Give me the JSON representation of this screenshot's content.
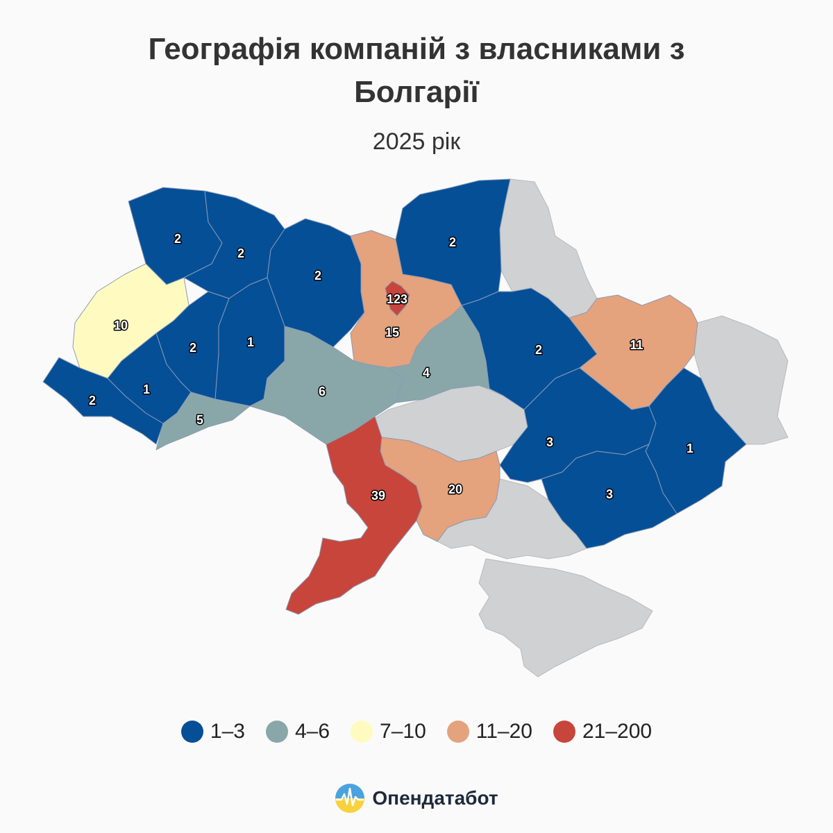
{
  "title_line1": "Географія компаній з власниками з",
  "title_line2": "Болгарії",
  "subtitle": "2025 рік",
  "colors": {
    "c1": "#054f97",
    "c2": "#89a7a8",
    "c3": "#fffbc0",
    "c4": "#e4a27d",
    "c5": "#c8453c",
    "no_data": "#d0d1d3"
  },
  "legend": [
    {
      "label": "1–3",
      "color": "#054f97"
    },
    {
      "label": "4–6",
      "color": "#89a7a8"
    },
    {
      "label": "7–10",
      "color": "#fffbc0"
    },
    {
      "label": "11–20",
      "color": "#e4a27d"
    },
    {
      "label": "21–200",
      "color": "#c8453c"
    }
  ],
  "regions": {
    "volyn": "2",
    "rivne": "2",
    "zhytomyr": "2",
    "kyiv_city": "123",
    "kyiv_obl": "15",
    "chernihiv": "2",
    "lviv": "10",
    "ternopil": "2",
    "khmelnytskyi": "1",
    "zakarpattia": "2",
    "ivano_frankivsk": "1",
    "chernivtsi": "5",
    "vinnytsia": "6",
    "cherkasy": "4",
    "poltava": "2",
    "kharkiv": "11",
    "dnipro": "3",
    "donetsk": "1",
    "zaporizhzhia": "3",
    "mykolaiv": "20",
    "odesa": "39"
  },
  "brand": {
    "name": "Опендатабот",
    "icon": "opendatabot-logo-icon"
  }
}
